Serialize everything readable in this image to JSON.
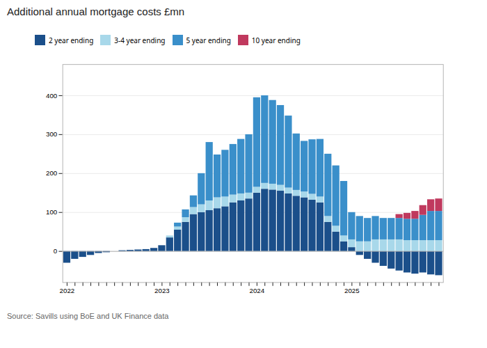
{
  "chart_data": {
    "type": "bar",
    "title": "Additional annual mortgage costs £mn",
    "source": "Source: Savills using BoE and UK Finance data",
    "stacked": true,
    "grid": true,
    "legend": "upper left",
    "categories": [
      "2022",
      null,
      null,
      null,
      null,
      null,
      null,
      null,
      null,
      null,
      null,
      null,
      "2023",
      null,
      null,
      null,
      null,
      null,
      null,
      null,
      null,
      null,
      null,
      null,
      "2024",
      null,
      null,
      null,
      null,
      null,
      null,
      null,
      null,
      null,
      null,
      null,
      "2025",
      null,
      null,
      null,
      null,
      null,
      null,
      null,
      null,
      null,
      null,
      null
    ],
    "series": [
      {
        "name": "2 year ending",
        "color": "#1b4f8a",
        "values": [
          -30,
          -20,
          -15,
          -10,
          -5,
          -3,
          0,
          2,
          3,
          4,
          5,
          8,
          15,
          35,
          55,
          75,
          95,
          100,
          105,
          110,
          115,
          125,
          130,
          135,
          150,
          160,
          158,
          155,
          148,
          142,
          138,
          132,
          125,
          75,
          50,
          25,
          10,
          -10,
          -20,
          -30,
          -38,
          -45,
          -50,
          -55,
          -58,
          -55,
          -60,
          -62
        ]
      },
      {
        "name": "3-4 year ending",
        "color": "#a8d8ea",
        "values": [
          0,
          0,
          0,
          0,
          0,
          0,
          0,
          0,
          0,
          0,
          0,
          0,
          0,
          5,
          8,
          12,
          18,
          20,
          25,
          28,
          25,
          20,
          18,
          15,
          15,
          15,
          15,
          15,
          15,
          15,
          15,
          15,
          15,
          15,
          15,
          15,
          20,
          25,
          25,
          30,
          30,
          30,
          30,
          28,
          28,
          28,
          28,
          28
        ]
      },
      {
        "name": "5 year ending",
        "color": "#3a8fca",
        "values": [
          0,
          0,
          0,
          0,
          0,
          0,
          0,
          0,
          0,
          0,
          0,
          0,
          0,
          0,
          10,
          20,
          30,
          80,
          150,
          110,
          120,
          130,
          140,
          150,
          230,
          225,
          215,
          205,
          185,
          145,
          130,
          140,
          148,
          160,
          155,
          140,
          70,
          65,
          60,
          60,
          55,
          55,
          55,
          55,
          55,
          65,
          75,
          75
        ]
      },
      {
        "name": "10 year ending",
        "color": "#c0395e",
        "values": [
          0,
          0,
          0,
          0,
          0,
          0,
          0,
          0,
          0,
          0,
          0,
          0,
          0,
          0,
          0,
          0,
          0,
          0,
          0,
          0,
          0,
          0,
          0,
          0,
          0,
          0,
          0,
          0,
          0,
          0,
          0,
          0,
          0,
          0,
          0,
          0,
          0,
          0,
          0,
          0,
          0,
          0,
          10,
          15,
          20,
          25,
          30,
          32
        ]
      }
    ],
    "ylim": [
      -80,
      480
    ],
    "yticks": [
      0,
      100,
      200,
      300,
      400
    ]
  }
}
